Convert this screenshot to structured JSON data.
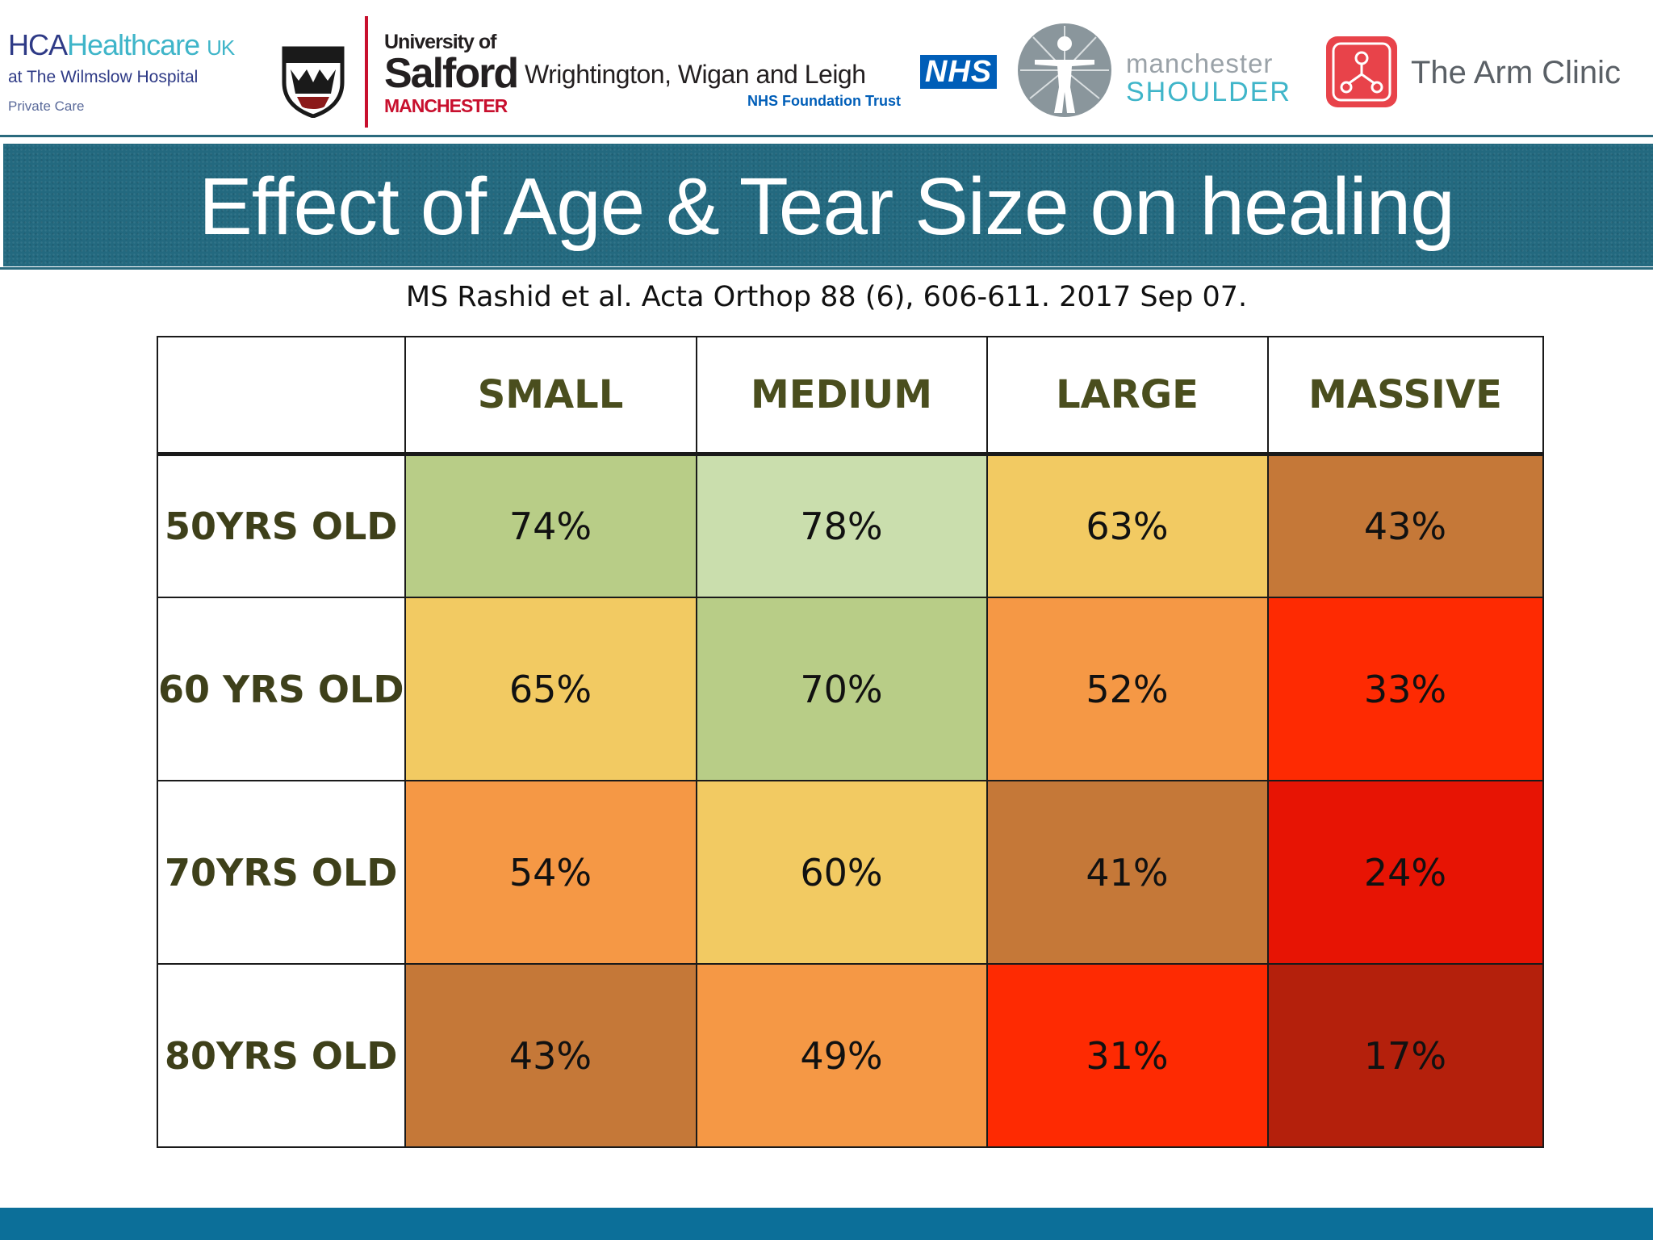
{
  "logos": {
    "hca": {
      "brand": "HCA",
      "healthcare": "Healthcare",
      "region": "UK",
      "line2": "at The Wilmslow Hospital",
      "line3": "Private Care"
    },
    "salford": {
      "line1": "University of",
      "line2": "Salford",
      "line3": "MANCHESTER"
    },
    "wwl": {
      "name": "Wrightington, Wigan and Leigh",
      "nhs": "NHS",
      "trust": "NHS Foundation Trust"
    },
    "manchester_shoulder": {
      "line1": "manchester",
      "line2": "SHOULDER"
    },
    "arm_clinic": {
      "name": "The Arm Clinic"
    }
  },
  "slide": {
    "title": "Effect of Age & Tear Size on healing",
    "citation": "MS Rashid et al.  Acta Orthop 88 (6), 606-611. 2017 Sep 07."
  },
  "colors": {
    "title_bar": "#23697f",
    "footer_bar": "#0c6f99",
    "header_text": "#4a4e1e",
    "row_label_text": "#3e401a"
  },
  "chart_data": {
    "type": "heatmap",
    "corner": "",
    "columns": [
      "SMALL",
      "MEDIUM",
      "LARGE",
      "MASSIVE"
    ],
    "rows": [
      {
        "label": "50YRS OLD",
        "values": [
          "74%",
          "78%",
          "63%",
          "43%"
        ],
        "colors": [
          "#b8cd87",
          "#cadead",
          "#f2ca62",
          "#c57838"
        ]
      },
      {
        "label": "60 YRS OLD",
        "values": [
          "65%",
          "70%",
          "52%",
          "33%"
        ],
        "colors": [
          "#f2ca62",
          "#b8cd87",
          "#f59845",
          "#fe2a02"
        ]
      },
      {
        "label": "70YRS OLD",
        "values": [
          "54%",
          "60%",
          "41%",
          "24%"
        ],
        "colors": [
          "#f59845",
          "#f2ca62",
          "#c57838",
          "#e71404"
        ]
      },
      {
        "label": "80YRS OLD",
        "values": [
          "43%",
          "49%",
          "31%",
          "17%"
        ],
        "colors": [
          "#c57838",
          "#f59845",
          "#fe2a02",
          "#b4200c"
        ]
      }
    ]
  }
}
